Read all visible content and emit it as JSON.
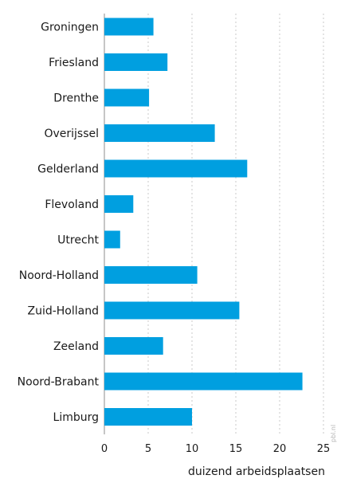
{
  "watermark": "pbl.nl",
  "chart_data": {
    "type": "bar",
    "orientation": "horizontal",
    "categories": [
      "Groningen",
      "Friesland",
      "Drenthe",
      "Overijssel",
      "Gelderland",
      "Flevoland",
      "Utrecht",
      "Noord-Holland",
      "Zuid-Holland",
      "Zeeland",
      "Noord-Brabant",
      "Limburg"
    ],
    "values": [
      5.6,
      7.2,
      5.1,
      12.6,
      16.3,
      3.3,
      1.8,
      10.6,
      15.4,
      6.7,
      22.6,
      10.0
    ],
    "xlim": [
      0,
      25
    ],
    "xticks": [
      0,
      5,
      10,
      15,
      20,
      25
    ],
    "xlabel": "duizend arbeidsplaatsen",
    "ylabel": "",
    "title": "",
    "grid": "vertical dashed",
    "bar_color": "#009fe0"
  }
}
